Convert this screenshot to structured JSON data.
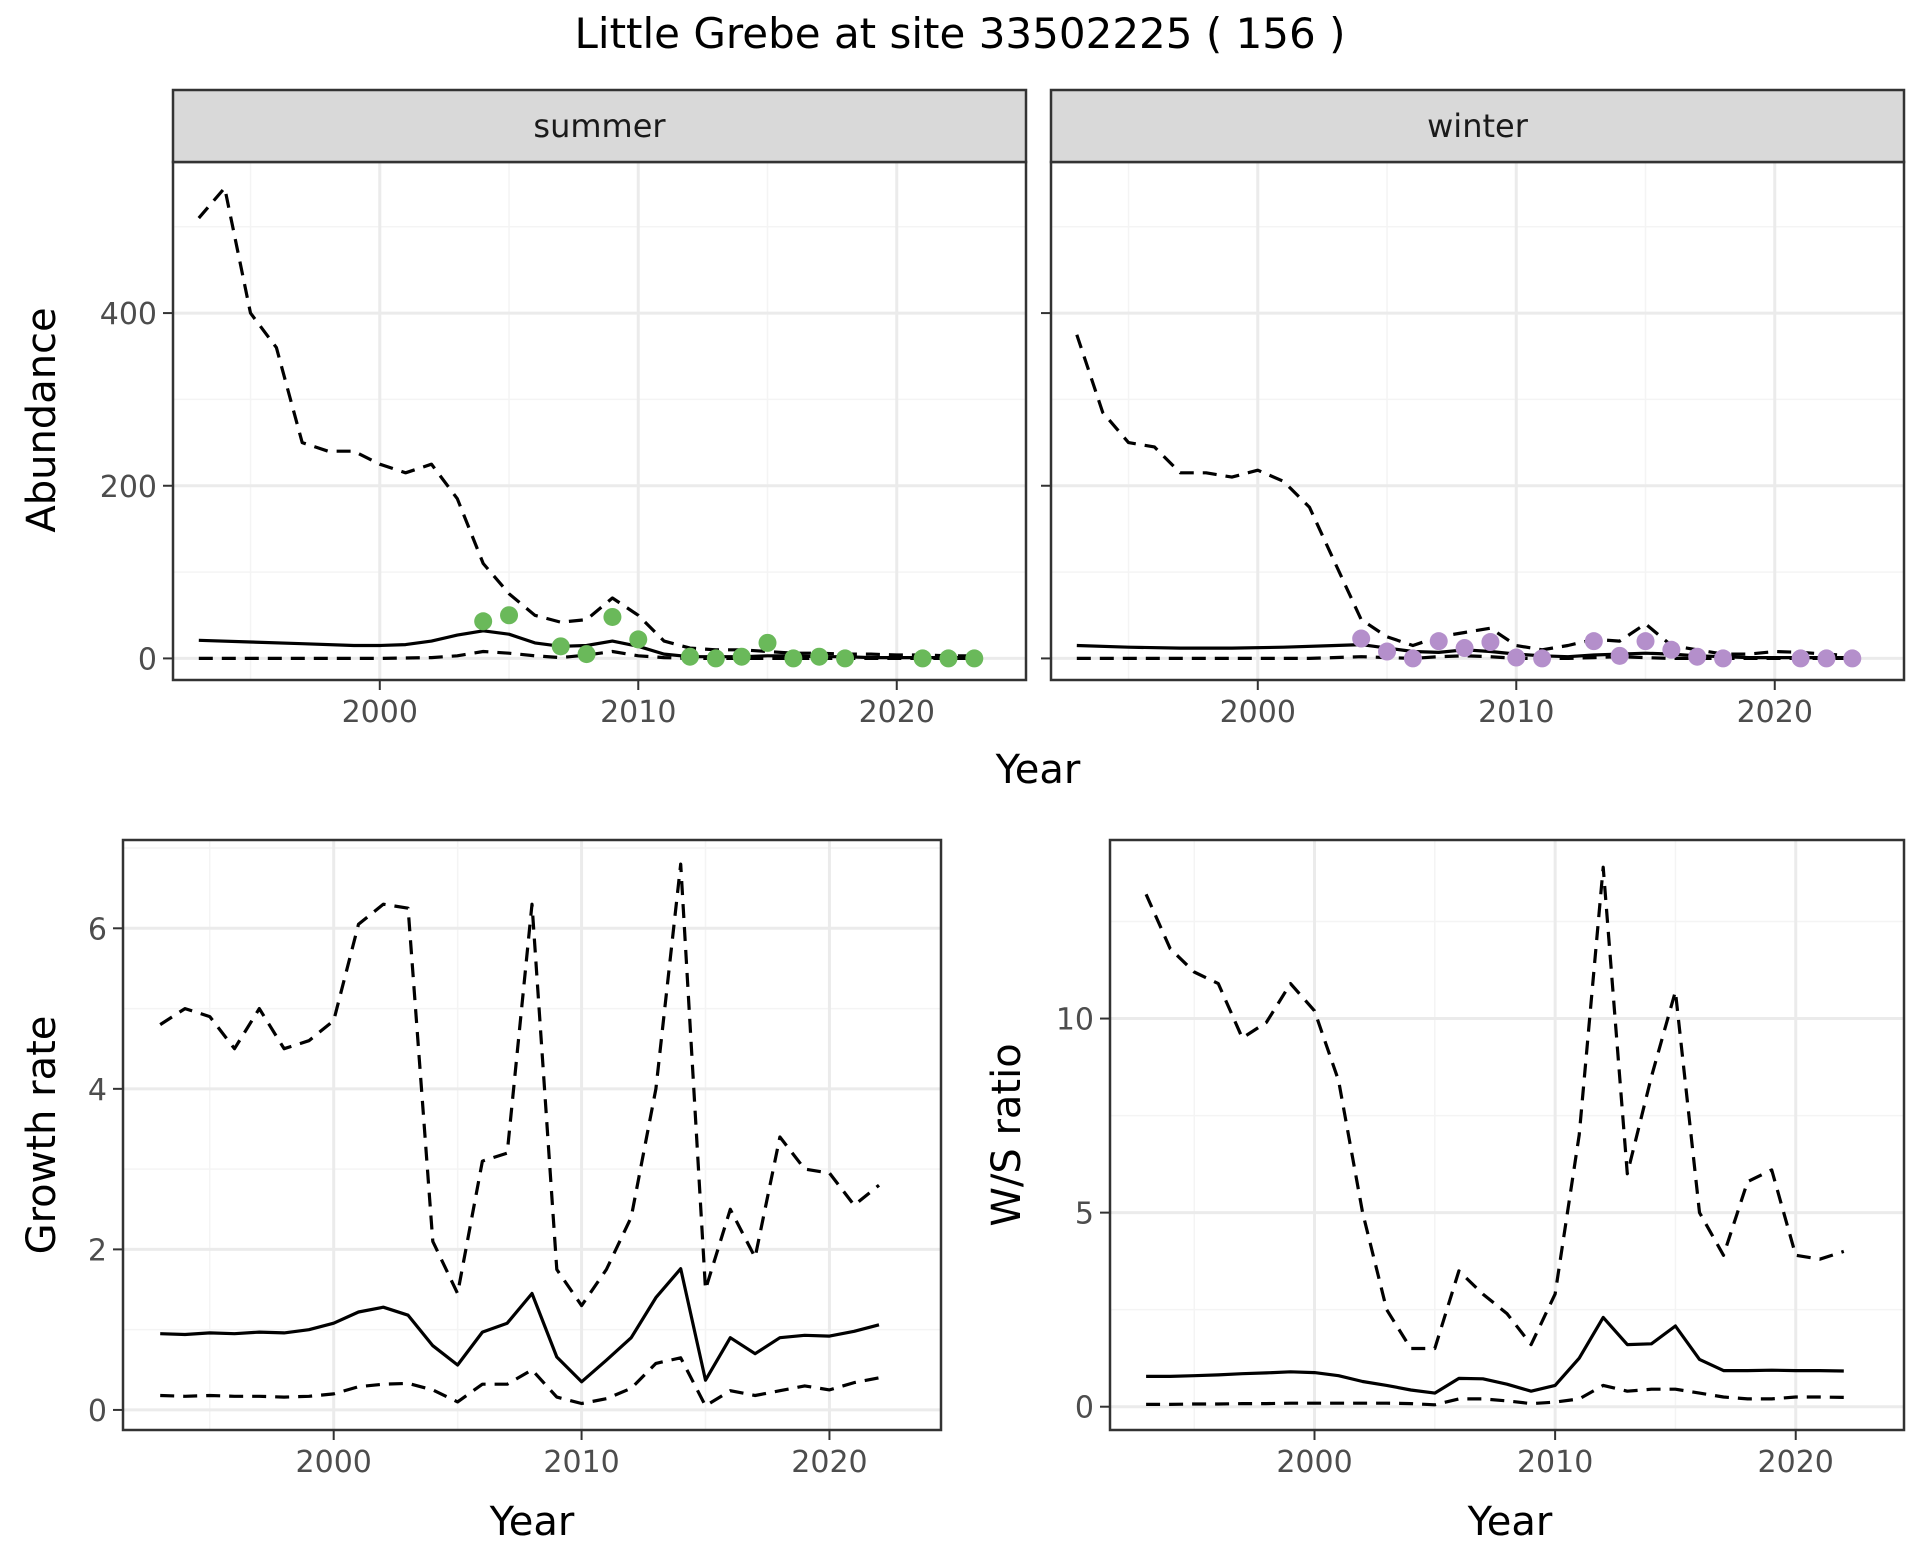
{
  "title": "Little Grebe at site 33502225 ( 156 )",
  "colors": {
    "summer_points": "#6ab95a",
    "winter_points": "#b48fcb",
    "line": "#000000",
    "strip_fill": "#d9d9d9",
    "grid_major": "#ebebeb",
    "grid_minor": "#f4f4f4",
    "axis_text": "#4d4d4d"
  },
  "labels": {
    "abundance_xlabel": "Year",
    "abundance_ylabel": "Abundance",
    "growth_xlabel": "Year",
    "growth_ylabel": "Growth rate",
    "ws_xlabel": "Year",
    "ws_ylabel": "W/S ratio"
  },
  "chart_data": [
    {
      "id": "summer",
      "type": "line",
      "facet": "summer",
      "xlim": [
        1992,
        2025
      ],
      "ylim": [
        -25,
        575
      ],
      "xticks": [
        2000,
        2010,
        2020
      ],
      "yticks": [
        0,
        200,
        400
      ],
      "ytick_labels": true,
      "series": [
        {
          "role": "estimate",
          "style": "solid",
          "x": [
            1993,
            1995,
            1997,
            1999,
            2000,
            2001,
            2002,
            2003,
            2004,
            2005,
            2006,
            2007,
            2008,
            2009,
            2010,
            2011,
            2012,
            2013,
            2014,
            2015,
            2016,
            2017,
            2018,
            2019,
            2020,
            2021,
            2022,
            2023
          ],
          "y": [
            21,
            19,
            17,
            15,
            15,
            16,
            20,
            27,
            32,
            28,
            18,
            14,
            15,
            20,
            14,
            5,
            2,
            2,
            2,
            3,
            3,
            2,
            2,
            1,
            1,
            1,
            1,
            1
          ]
        },
        {
          "role": "upper",
          "style": "dashed",
          "x": [
            1993,
            1994,
            1995,
            1996,
            1997,
            1998,
            1999,
            2000,
            2001,
            2002,
            2003,
            2004,
            2005,
            2006,
            2007,
            2008,
            2009,
            2010,
            2011,
            2012,
            2013,
            2014,
            2015,
            2016,
            2017,
            2018,
            2019,
            2020,
            2021,
            2022,
            2023
          ],
          "y": [
            510,
            545,
            400,
            360,
            250,
            240,
            240,
            225,
            215,
            225,
            185,
            110,
            75,
            50,
            42,
            45,
            70,
            50,
            20,
            12,
            10,
            10,
            8,
            6,
            6,
            5,
            5,
            4,
            4,
            3,
            3
          ]
        },
        {
          "role": "lower",
          "style": "dashed",
          "x": [
            1993,
            2000,
            2002,
            2003,
            2004,
            2005,
            2006,
            2007,
            2008,
            2009,
            2010,
            2011,
            2012,
            2023
          ],
          "y": [
            0,
            0,
            1,
            3,
            8,
            6,
            3,
            1,
            4,
            8,
            3,
            1,
            0,
            0
          ]
        }
      ],
      "points": {
        "x": [
          2004,
          2005,
          2007,
          2008,
          2009,
          2010,
          2012,
          2013,
          2014,
          2015,
          2016,
          2017,
          2018,
          2021,
          2022,
          2023
        ],
        "y": [
          43,
          50,
          14,
          5,
          48,
          22,
          2,
          0,
          2,
          18,
          0,
          2,
          0,
          0,
          0,
          0
        ]
      }
    },
    {
      "id": "winter",
      "type": "line",
      "facet": "winter",
      "xlim": [
        1992,
        2025
      ],
      "ylim": [
        -25,
        575
      ],
      "xticks": [
        2000,
        2010,
        2020
      ],
      "yticks": [
        0,
        200,
        400
      ],
      "ytick_labels": false,
      "series": [
        {
          "role": "estimate",
          "style": "solid",
          "x": [
            1993,
            1995,
            1997,
            1999,
            2001,
            2003,
            2004,
            2005,
            2006,
            2007,
            2008,
            2009,
            2010,
            2011,
            2012,
            2013,
            2014,
            2015,
            2016,
            2017,
            2018,
            2019,
            2020,
            2021,
            2022,
            2023
          ],
          "y": [
            15,
            13,
            12,
            12,
            13,
            15,
            16,
            12,
            8,
            7,
            10,
            8,
            5,
            3,
            2,
            4,
            5,
            6,
            5,
            3,
            2,
            1,
            1,
            1,
            1,
            1
          ]
        },
        {
          "role": "upper",
          "style": "dashed",
          "x": [
            1993,
            1994,
            1995,
            1996,
            1997,
            1998,
            1999,
            2000,
            2001,
            2002,
            2003,
            2004,
            2005,
            2006,
            2007,
            2008,
            2009,
            2010,
            2011,
            2012,
            2013,
            2014,
            2015,
            2016,
            2017,
            2018,
            2019,
            2020,
            2021,
            2022,
            2023
          ],
          "y": [
            375,
            285,
            250,
            245,
            215,
            215,
            210,
            218,
            205,
            175,
            110,
            45,
            25,
            15,
            25,
            30,
            35,
            15,
            10,
            15,
            22,
            20,
            40,
            15,
            10,
            5,
            5,
            8,
            7,
            5,
            3
          ]
        },
        {
          "role": "lower",
          "style": "dashed",
          "x": [
            1993,
            2002,
            2004,
            2005,
            2006,
            2007,
            2008,
            2009,
            2010,
            2011,
            2012,
            2013,
            2014,
            2015,
            2016,
            2023
          ],
          "y": [
            0,
            0,
            2,
            1,
            0,
            2,
            3,
            2,
            0,
            0,
            0,
            1,
            2,
            1,
            0,
            0
          ]
        }
      ],
      "points": {
        "x": [
          2004,
          2005,
          2006,
          2007,
          2008,
          2009,
          2010,
          2011,
          2013,
          2014,
          2015,
          2016,
          2017,
          2018,
          2021,
          2022,
          2023
        ],
        "y": [
          23,
          8,
          0,
          20,
          12,
          19,
          1,
          0,
          20,
          3,
          20,
          10,
          2,
          0,
          0,
          0,
          0
        ]
      }
    },
    {
      "id": "growth",
      "type": "line",
      "xlim": [
        1991.5,
        2024.5
      ],
      "ylim": [
        -0.25,
        7.1
      ],
      "xticks": [
        2000,
        2010,
        2020
      ],
      "yticks": [
        0,
        2,
        4,
        6
      ],
      "series": [
        {
          "role": "estimate",
          "style": "solid",
          "x": [
            1993,
            1994,
            1995,
            1996,
            1997,
            1998,
            1999,
            2000,
            2001,
            2002,
            2003,
            2004,
            2005,
            2006,
            2007,
            2008,
            2009,
            2010,
            2011,
            2012,
            2013,
            2014,
            2015,
            2016,
            2017,
            2018,
            2019,
            2020,
            2021,
            2022
          ],
          "y": [
            0.95,
            0.94,
            0.96,
            0.95,
            0.97,
            0.96,
            1.0,
            1.08,
            1.22,
            1.28,
            1.18,
            0.8,
            0.56,
            0.97,
            1.08,
            1.45,
            0.66,
            0.35,
            0.62,
            0.9,
            1.4,
            1.76,
            0.37,
            0.9,
            0.7,
            0.9,
            0.93,
            0.92,
            0.98,
            1.06
          ]
        },
        {
          "role": "upper",
          "style": "dashed",
          "x": [
            1993,
            1994,
            1995,
            1996,
            1997,
            1998,
            1999,
            2000,
            2001,
            2002,
            2003,
            2004,
            2005,
            2006,
            2007,
            2008,
            2009,
            2010,
            2011,
            2012,
            2013,
            2014,
            2015,
            2016,
            2017,
            2018,
            2019,
            2020,
            2021,
            2022
          ],
          "y": [
            4.8,
            5.0,
            4.9,
            4.5,
            5.0,
            4.5,
            4.6,
            4.85,
            6.05,
            6.3,
            6.25,
            2.1,
            1.45,
            3.1,
            3.2,
            6.3,
            1.75,
            1.3,
            1.75,
            2.4,
            4.0,
            6.8,
            1.5,
            2.5,
            1.9,
            3.4,
            3.0,
            2.95,
            2.55,
            2.8
          ]
        },
        {
          "role": "lower",
          "style": "dashed",
          "x": [
            1993,
            1994,
            1995,
            1996,
            1997,
            1998,
            1999,
            2000,
            2001,
            2002,
            2003,
            2004,
            2005,
            2006,
            2007,
            2008,
            2009,
            2010,
            2011,
            2012,
            2013,
            2014,
            2015,
            2016,
            2017,
            2018,
            2019,
            2020,
            2021,
            2022
          ],
          "y": [
            0.18,
            0.17,
            0.18,
            0.17,
            0.17,
            0.16,
            0.17,
            0.2,
            0.29,
            0.32,
            0.33,
            0.25,
            0.1,
            0.32,
            0.32,
            0.5,
            0.16,
            0.08,
            0.14,
            0.27,
            0.58,
            0.65,
            0.05,
            0.24,
            0.18,
            0.24,
            0.3,
            0.25,
            0.34,
            0.4
          ]
        }
      ]
    },
    {
      "id": "ws",
      "type": "line",
      "xlim": [
        1991.5,
        2024.5
      ],
      "ylim": [
        -0.6,
        14.6
      ],
      "xticks": [
        2000,
        2010,
        2020
      ],
      "yticks": [
        0,
        5,
        10
      ],
      "series": [
        {
          "role": "estimate",
          "style": "solid",
          "x": [
            1993,
            1994,
            1995,
            1996,
            1997,
            1998,
            1999,
            2000,
            2001,
            2002,
            2003,
            2004,
            2005,
            2006,
            2007,
            2008,
            2009,
            2010,
            2011,
            2012,
            2013,
            2014,
            2015,
            2016,
            2017,
            2018,
            2019,
            2020,
            2021,
            2022
          ],
          "y": [
            0.78,
            0.78,
            0.8,
            0.82,
            0.85,
            0.87,
            0.9,
            0.88,
            0.8,
            0.65,
            0.55,
            0.43,
            0.35,
            0.73,
            0.72,
            0.58,
            0.4,
            0.55,
            1.25,
            2.3,
            1.6,
            1.62,
            2.08,
            1.22,
            0.93,
            0.93,
            0.94,
            0.93,
            0.93,
            0.92
          ]
        },
        {
          "role": "upper",
          "style": "dashed",
          "x": [
            1993,
            1994,
            1995,
            1996,
            1997,
            1998,
            1999,
            2000,
            2001,
            2002,
            2003,
            2004,
            2005,
            2006,
            2007,
            2008,
            2009,
            2010,
            2011,
            2012,
            2013,
            2014,
            2015,
            2016,
            2017,
            2018,
            2019,
            2020,
            2021,
            2022
          ],
          "y": [
            13.2,
            11.8,
            11.2,
            10.9,
            9.5,
            9.9,
            10.9,
            10.2,
            8.4,
            5.0,
            2.5,
            1.5,
            1.5,
            3.5,
            2.9,
            2.4,
            1.6,
            2.9,
            7.0,
            13.9,
            6.0,
            8.5,
            10.7,
            5.0,
            3.9,
            5.8,
            6.1,
            3.9,
            3.8,
            4.0
          ]
        },
        {
          "role": "lower",
          "style": "dashed",
          "x": [
            1993,
            1994,
            1995,
            1996,
            1997,
            1998,
            1999,
            2000,
            2001,
            2002,
            2003,
            2004,
            2005,
            2006,
            2007,
            2008,
            2009,
            2010,
            2011,
            2012,
            2013,
            2014,
            2015,
            2016,
            2017,
            2018,
            2019,
            2020,
            2021,
            2022
          ],
          "y": [
            0.06,
            0.06,
            0.07,
            0.07,
            0.08,
            0.08,
            0.09,
            0.09,
            0.09,
            0.09,
            0.09,
            0.08,
            0.05,
            0.2,
            0.2,
            0.15,
            0.08,
            0.12,
            0.2,
            0.55,
            0.4,
            0.45,
            0.45,
            0.35,
            0.25,
            0.2,
            0.2,
            0.25,
            0.25,
            0.24
          ]
        }
      ]
    }
  ]
}
